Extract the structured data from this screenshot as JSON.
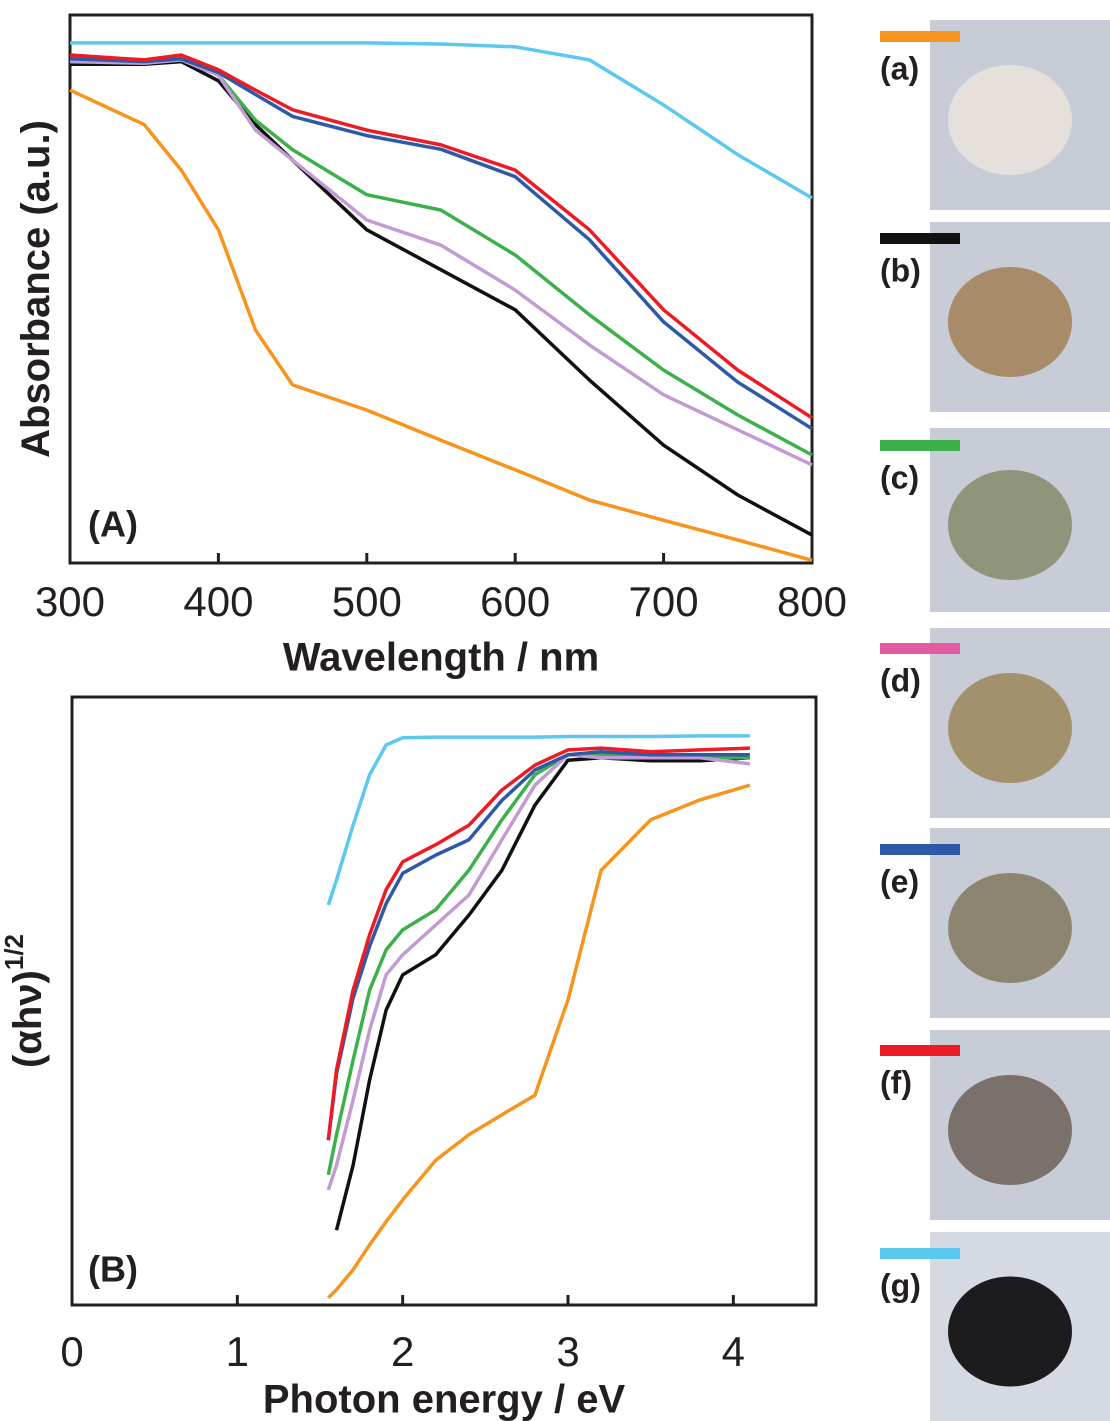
{
  "chart_data": [
    {
      "type": "line",
      "xlabel": "Wavelength / nm",
      "ylabel": "Absorbance (a.u.)",
      "annotation": "(A)",
      "x": [
        300,
        350,
        375,
        400,
        425,
        450,
        500,
        550,
        600,
        650,
        700,
        750,
        800
      ],
      "xlim": [
        300,
        800
      ],
      "xticks": [
        300,
        400,
        500,
        600,
        700,
        800
      ],
      "ylim": [
        0,
        1
      ],
      "series": [
        {
          "color": "#f7941d",
          "values": [
            0.863,
            0.8,
            0.717,
            0.608,
            0.425,
            0.325,
            0.279,
            0.224,
            0.17,
            0.115,
            0.078,
            0.042,
            0.005
          ]
        },
        {
          "color": "#111111",
          "values": [
            0.91,
            0.91,
            0.915,
            0.88,
            0.8,
            0.735,
            0.608,
            0.535,
            0.462,
            0.334,
            0.215,
            0.124,
            0.051
          ]
        },
        {
          "color": "#3cb04a",
          "values": [
            0.92,
            0.915,
            0.92,
            0.89,
            0.808,
            0.754,
            0.672,
            0.644,
            0.562,
            0.453,
            0.352,
            0.27,
            0.197
          ]
        },
        {
          "color": "#c39bd3",
          "values": [
            0.915,
            0.912,
            0.918,
            0.89,
            0.79,
            0.735,
            0.626,
            0.58,
            0.498,
            0.398,
            0.307,
            0.243,
            0.179
          ]
        },
        {
          "color": "#2e59a8",
          "values": [
            0.92,
            0.915,
            0.92,
            0.895,
            0.855,
            0.815,
            0.78,
            0.755,
            0.705,
            0.59,
            0.44,
            0.33,
            0.245
          ]
        },
        {
          "color": "#ed1c24",
          "values": [
            0.927,
            0.918,
            0.927,
            0.9,
            0.863,
            0.827,
            0.79,
            0.763,
            0.717,
            0.608,
            0.462,
            0.352,
            0.265
          ]
        },
        {
          "color": "#5bc8f0",
          "values": [
            0.949,
            0.949,
            0.949,
            0.949,
            0.949,
            0.949,
            0.949,
            0.947,
            0.942,
            0.918,
            0.836,
            0.745,
            0.666
          ]
        }
      ]
    },
    {
      "type": "line",
      "xlabel": "Photon energy / eV",
      "ylabel": "(αhν)",
      "ylabel_sup": "1/2",
      "annotation": "(B)",
      "x": [
        1.55,
        1.6,
        1.7,
        1.8,
        1.9,
        2.0,
        2.2,
        2.4,
        2.6,
        2.8,
        3.0,
        3.2,
        3.5,
        3.8,
        4.1
      ],
      "xlim": [
        0,
        4.5
      ],
      "xticks": [
        0,
        1,
        2,
        3,
        4
      ],
      "ylim": [
        0,
        1
      ],
      "series": [
        {
          "color": "#f7941d",
          "values": [
            0.012,
            0.025,
            0.058,
            0.099,
            0.137,
            0.173,
            0.238,
            0.28,
            0.313,
            0.345,
            0.502,
            0.715,
            0.798,
            0.831,
            0.855
          ]
        },
        {
          "color": "#111111",
          "values": [
            null,
            0.123,
            0.23,
            0.37,
            0.485,
            0.543,
            0.576,
            0.641,
            0.715,
            0.822,
            0.896,
            0.9,
            0.895,
            0.895,
            0.9
          ]
        },
        {
          "color": "#3cb04a",
          "values": [
            0.214,
            0.28,
            0.403,
            0.518,
            0.584,
            0.617,
            0.65,
            0.715,
            0.798,
            0.872,
            0.905,
            0.905,
            0.9,
            0.9,
            0.9
          ]
        },
        {
          "color": "#c39bd3",
          "values": [
            0.189,
            0.23,
            0.337,
            0.452,
            0.543,
            0.576,
            0.625,
            0.674,
            0.765,
            0.855,
            0.905,
            0.9,
            0.9,
            0.9,
            0.89
          ]
        },
        {
          "color": "#2e59a8",
          "values": [
            0.271,
            0.38,
            0.505,
            0.59,
            0.66,
            0.71,
            0.74,
            0.765,
            0.83,
            0.88,
            0.905,
            0.91,
            0.905,
            0.905,
            0.905
          ]
        },
        {
          "color": "#ed1c24",
          "values": [
            0.271,
            0.387,
            0.518,
            0.609,
            0.683,
            0.729,
            0.757,
            0.789,
            0.847,
            0.888,
            0.913,
            0.916,
            0.91,
            0.913,
            0.916
          ]
        },
        {
          "color": "#5bc8f0",
          "values": [
            0.658,
            0.699,
            0.789,
            0.872,
            0.921,
            0.933,
            0.934,
            0.934,
            0.934,
            0.934,
            0.935,
            0.935,
            0.935,
            0.936,
            0.936
          ]
        }
      ]
    }
  ],
  "samples": [
    {
      "label": "(a)",
      "color": "#f7941d"
    },
    {
      "label": "(b)",
      "color": "#111111"
    },
    {
      "label": "(c)",
      "color": "#3cb04a"
    },
    {
      "label": "(d)",
      "color": "#e35ba3"
    },
    {
      "label": "(e)",
      "color": "#2e59a8"
    },
    {
      "label": "(f)",
      "color": "#ed1c24"
    },
    {
      "label": "(g)",
      "color": "#5bc8f0"
    }
  ]
}
